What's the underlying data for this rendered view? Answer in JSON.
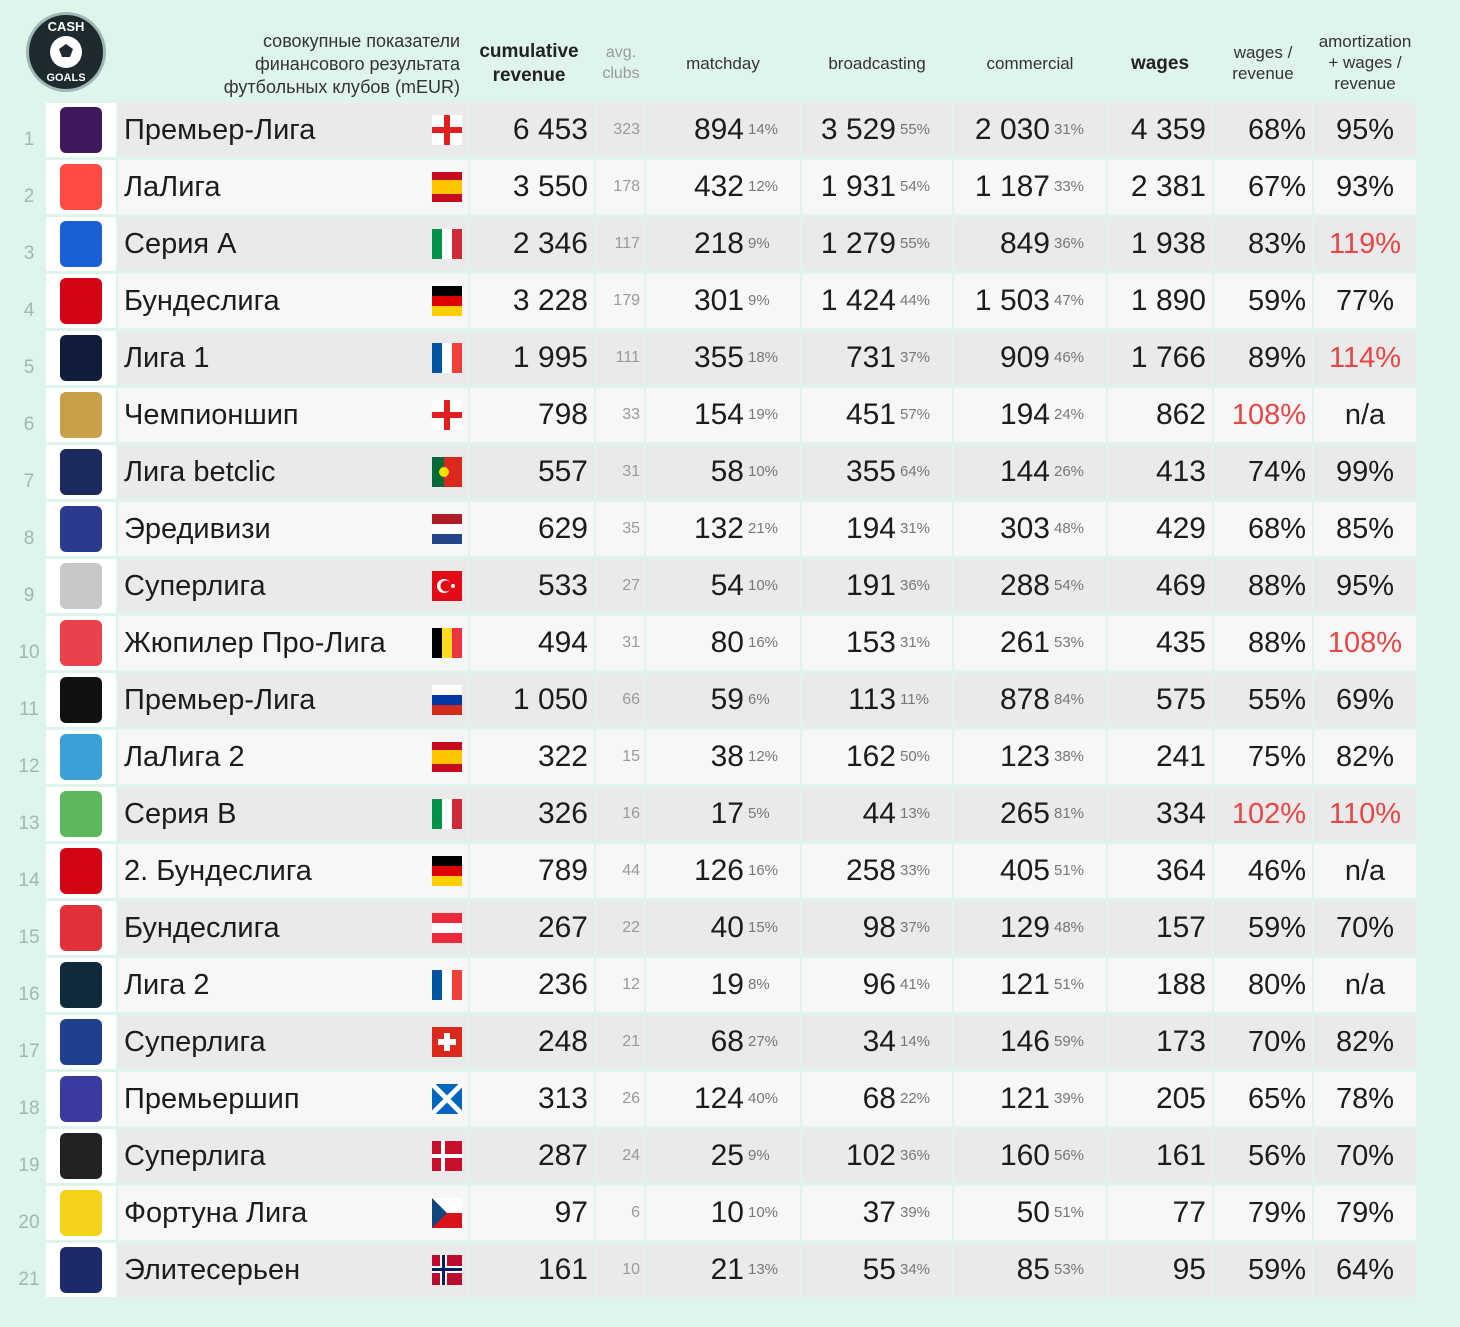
{
  "header": {
    "title_lines": [
      "совокупные показатели",
      "финансового результата",
      "футбольных клубов (mEUR)"
    ],
    "cumulative_revenue": [
      "cumulative",
      "revenue"
    ],
    "avg_clubs": [
      "avg.",
      "clubs"
    ],
    "matchday": "matchday",
    "broadcasting": "broadcasting",
    "commercial": "commercial",
    "wages": "wages",
    "wages_revenue": [
      "wages /",
      "revenue"
    ],
    "amortization": [
      "amortization",
      "+ wages /",
      "revenue"
    ]
  },
  "logo": {
    "text_top": "CASH",
    "text_bottom": "GOALS"
  },
  "rows": [
    {
      "rank": "1",
      "name": "Премьер-Лига",
      "flag": "england",
      "logo_color": "#3d195b",
      "revenue": "6 453",
      "clubs": "323",
      "matchday": "894",
      "matchday_pct": "14%",
      "broadcasting": "3 529",
      "broadcasting_pct": "55%",
      "commercial": "2 030",
      "commercial_pct": "31%",
      "wages": "4 359",
      "wages_rev": "68%",
      "wages_rev_red": false,
      "amort": "95%",
      "amort_red": false
    },
    {
      "rank": "2",
      "name": "ЛаЛига",
      "flag": "spain",
      "logo_color": "#ff4b44",
      "revenue": "3 550",
      "clubs": "178",
      "matchday": "432",
      "matchday_pct": "12%",
      "broadcasting": "1 931",
      "broadcasting_pct": "54%",
      "commercial": "1 187",
      "commercial_pct": "33%",
      "wages": "2 381",
      "wages_rev": "67%",
      "wages_rev_red": false,
      "amort": "93%",
      "amort_red": false
    },
    {
      "rank": "3",
      "name": "Серия А",
      "flag": "italy",
      "logo_color": "#1a5fd6",
      "revenue": "2 346",
      "clubs": "117",
      "matchday": "218",
      "matchday_pct": "9%",
      "broadcasting": "1 279",
      "broadcasting_pct": "55%",
      "commercial": "849",
      "commercial_pct": "36%",
      "wages": "1 938",
      "wages_rev": "83%",
      "wages_rev_red": false,
      "amort": "119%",
      "amort_red": true
    },
    {
      "rank": "4",
      "name": "Бундеслига",
      "flag": "germany",
      "logo_color": "#d20515",
      "revenue": "3 228",
      "clubs": "179",
      "matchday": "301",
      "matchday_pct": "9%",
      "broadcasting": "1 424",
      "broadcasting_pct": "44%",
      "commercial": "1 503",
      "commercial_pct": "47%",
      "wages": "1 890",
      "wages_rev": "59%",
      "wages_rev_red": false,
      "amort": "77%",
      "amort_red": false
    },
    {
      "rank": "5",
      "name": "Лига 1",
      "flag": "france",
      "logo_color": "#0f1d3a",
      "revenue": "1 995",
      "clubs": "111",
      "matchday": "355",
      "matchday_pct": "18%",
      "broadcasting": "731",
      "broadcasting_pct": "37%",
      "commercial": "909",
      "commercial_pct": "46%",
      "wages": "1 766",
      "wages_rev": "89%",
      "wages_rev_red": false,
      "amort": "114%",
      "amort_red": true
    },
    {
      "rank": "6",
      "name": "Чемпионшип",
      "flag": "england",
      "logo_color": "#c9a04a",
      "revenue": "798",
      "clubs": "33",
      "matchday": "154",
      "matchday_pct": "19%",
      "broadcasting": "451",
      "broadcasting_pct": "57%",
      "commercial": "194",
      "commercial_pct": "24%",
      "wages": "862",
      "wages_rev": "108%",
      "wages_rev_red": true,
      "amort": "n/a",
      "amort_red": false
    },
    {
      "rank": "7",
      "name": "Лига betclic",
      "flag": "portugal",
      "logo_color": "#1b2a5c",
      "revenue": "557",
      "clubs": "31",
      "matchday": "58",
      "matchday_pct": "10%",
      "broadcasting": "355",
      "broadcasting_pct": "64%",
      "commercial": "144",
      "commercial_pct": "26%",
      "wages": "413",
      "wages_rev": "74%",
      "wages_rev_red": false,
      "amort": "99%",
      "amort_red": false
    },
    {
      "rank": "8",
      "name": "Эредивизи",
      "flag": "netherlands",
      "logo_color": "#2a3a8f",
      "revenue": "629",
      "clubs": "35",
      "matchday": "132",
      "matchday_pct": "21%",
      "broadcasting": "194",
      "broadcasting_pct": "31%",
      "commercial": "303",
      "commercial_pct": "48%",
      "wages": "429",
      "wages_rev": "68%",
      "wages_rev_red": false,
      "amort": "85%",
      "amort_red": false
    },
    {
      "rank": "9",
      "name": "Суперлига",
      "flag": "turkey",
      "logo_color": "#c8c8c8",
      "revenue": "533",
      "clubs": "27",
      "matchday": "54",
      "matchday_pct": "10%",
      "broadcasting": "191",
      "broadcasting_pct": "36%",
      "commercial": "288",
      "commercial_pct": "54%",
      "wages": "469",
      "wages_rev": "88%",
      "wages_rev_red": false,
      "amort": "95%",
      "amort_red": false
    },
    {
      "rank": "10",
      "name": "Жюпилер Про-Лига",
      "flag": "belgium",
      "logo_color": "#e8434b",
      "revenue": "494",
      "clubs": "31",
      "matchday": "80",
      "matchday_pct": "16%",
      "broadcasting": "153",
      "broadcasting_pct": "31%",
      "commercial": "261",
      "commercial_pct": "53%",
      "wages": "435",
      "wages_rev": "88%",
      "wages_rev_red": false,
      "amort": "108%",
      "amort_red": true
    },
    {
      "rank": "11",
      "name": "Премьер-Лига",
      "flag": "russia",
      "logo_color": "#111111",
      "revenue": "1 050",
      "clubs": "66",
      "matchday": "59",
      "matchday_pct": "6%",
      "broadcasting": "113",
      "broadcasting_pct": "11%",
      "commercial": "878",
      "commercial_pct": "84%",
      "wages": "575",
      "wages_rev": "55%",
      "wages_rev_red": false,
      "amort": "69%",
      "amort_red": false
    },
    {
      "rank": "12",
      "name": "ЛаЛига 2",
      "flag": "spain",
      "logo_color": "#3aa0d8",
      "revenue": "322",
      "clubs": "15",
      "matchday": "38",
      "matchday_pct": "12%",
      "broadcasting": "162",
      "broadcasting_pct": "50%",
      "commercial": "123",
      "commercial_pct": "38%",
      "wages": "241",
      "wages_rev": "75%",
      "wages_rev_red": false,
      "amort": "82%",
      "amort_red": false
    },
    {
      "rank": "13",
      "name": "Серия В",
      "flag": "italy",
      "logo_color": "#5cb85c",
      "revenue": "326",
      "clubs": "16",
      "matchday": "17",
      "matchday_pct": "5%",
      "broadcasting": "44",
      "broadcasting_pct": "13%",
      "commercial": "265",
      "commercial_pct": "81%",
      "wages": "334",
      "wages_rev": "102%",
      "wages_rev_red": true,
      "amort": "110%",
      "amort_red": true
    },
    {
      "rank": "14",
      "name": "2. Бундеслига",
      "flag": "germany",
      "logo_color": "#d20515",
      "revenue": "789",
      "clubs": "44",
      "matchday": "126",
      "matchday_pct": "16%",
      "broadcasting": "258",
      "broadcasting_pct": "33%",
      "commercial": "405",
      "commercial_pct": "51%",
      "wages": "364",
      "wages_rev": "46%",
      "wages_rev_red": false,
      "amort": "n/a",
      "amort_red": false
    },
    {
      "rank": "15",
      "name": "Бундеслига",
      "flag": "austria",
      "logo_color": "#e0303a",
      "revenue": "267",
      "clubs": "22",
      "matchday": "40",
      "matchday_pct": "15%",
      "broadcasting": "98",
      "broadcasting_pct": "37%",
      "commercial": "129",
      "commercial_pct": "48%",
      "wages": "157",
      "wages_rev": "59%",
      "wages_rev_red": false,
      "amort": "70%",
      "amort_red": false
    },
    {
      "rank": "16",
      "name": "Лига 2",
      "flag": "france",
      "logo_color": "#0f2a3a",
      "revenue": "236",
      "clubs": "12",
      "matchday": "19",
      "matchday_pct": "8%",
      "broadcasting": "96",
      "broadcasting_pct": "41%",
      "commercial": "121",
      "commercial_pct": "51%",
      "wages": "188",
      "wages_rev": "80%",
      "wages_rev_red": false,
      "amort": "n/a",
      "amort_red": false
    },
    {
      "rank": "17",
      "name": "Суперлига",
      "flag": "switzerland",
      "logo_color": "#1f3f8f",
      "revenue": "248",
      "clubs": "21",
      "matchday": "68",
      "matchday_pct": "27%",
      "broadcasting": "34",
      "broadcasting_pct": "14%",
      "commercial": "146",
      "commercial_pct": "59%",
      "wages": "173",
      "wages_rev": "70%",
      "wages_rev_red": false,
      "amort": "82%",
      "amort_red": false
    },
    {
      "rank": "18",
      "name": "Премьершип",
      "flag": "scotland",
      "logo_color": "#3a3aa0",
      "revenue": "313",
      "clubs": "26",
      "matchday": "124",
      "matchday_pct": "40%",
      "broadcasting": "68",
      "broadcasting_pct": "22%",
      "commercial": "121",
      "commercial_pct": "39%",
      "wages": "205",
      "wages_rev": "65%",
      "wages_rev_red": false,
      "amort": "78%",
      "amort_red": false
    },
    {
      "rank": "19",
      "name": "Суперлига",
      "flag": "denmark",
      "logo_color": "#222222",
      "revenue": "287",
      "clubs": "24",
      "matchday": "25",
      "matchday_pct": "9%",
      "broadcasting": "102",
      "broadcasting_pct": "36%",
      "commercial": "160",
      "commercial_pct": "56%",
      "wages": "161",
      "wages_rev": "56%",
      "wages_rev_red": false,
      "amort": "70%",
      "amort_red": false
    },
    {
      "rank": "20",
      "name": "Фортуна Лига",
      "flag": "czech",
      "logo_color": "#f2d21b",
      "revenue": "97",
      "clubs": "6",
      "matchday": "10",
      "matchday_pct": "10%",
      "broadcasting": "37",
      "broadcasting_pct": "39%",
      "commercial": "50",
      "commercial_pct": "51%",
      "wages": "77",
      "wages_rev": "79%",
      "wages_rev_red": false,
      "amort": "79%",
      "amort_red": false
    },
    {
      "rank": "21",
      "name": "Элитесерьен",
      "flag": "norway",
      "logo_color": "#1c2a6b",
      "revenue": "161",
      "clubs": "10",
      "matchday": "21",
      "matchday_pct": "13%",
      "broadcasting": "55",
      "broadcasting_pct": "34%",
      "commercial": "85",
      "commercial_pct": "53%",
      "wages": "95",
      "wages_rev": "59%",
      "wages_rev_red": false,
      "amort": "64%",
      "amort_red": false
    }
  ],
  "colors": {
    "background": "#dff4ea",
    "row_odd": "#eaeaea",
    "row_even": "#f7f7f7",
    "warning_red": "#e84545",
    "rank_color": "#9fb8b6"
  }
}
